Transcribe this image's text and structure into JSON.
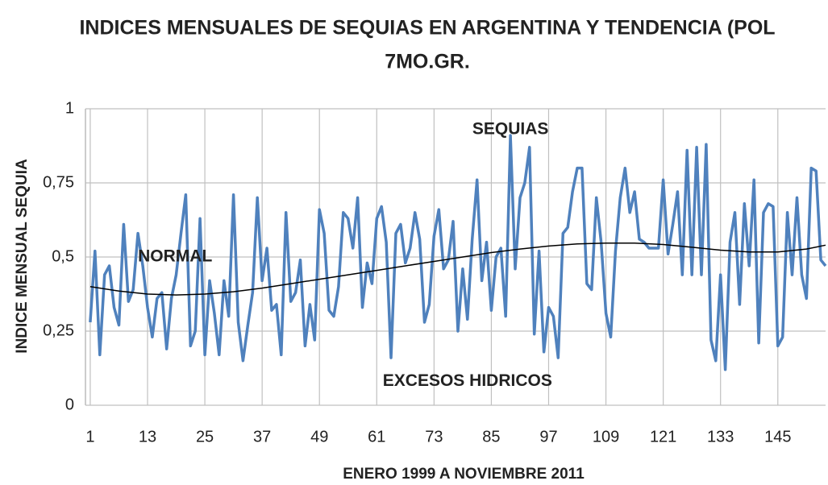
{
  "chart_data": {
    "type": "line",
    "title": [
      "INDICES MENSUALES DE SEQUIAS EN ARGENTINA Y TENDENCIA (POL",
      "7MO.GR."
    ],
    "x_label": "ENERO 1999 A NOVIEMBRE 2011",
    "y_label": "INDICE MENSUAL SEQUIA",
    "annotations": [
      {
        "text": "SEQUIAS",
        "x": 89,
        "y": 0.93
      },
      {
        "text": "NORMAL",
        "x": 11,
        "y": 0.5
      },
      {
        "text": "EXCESOS HIDRICOS",
        "x": 80,
        "y": 0.08
      }
    ],
    "xlim": [
      0,
      155
    ],
    "xticks": [
      1,
      13,
      25,
      37,
      49,
      61,
      73,
      85,
      97,
      109,
      121,
      133,
      145
    ],
    "ylim": [
      0,
      1
    ],
    "yticks": [
      0,
      {
        "value": 0.25,
        "label": "0,25"
      },
      {
        "value": 0.5,
        "label": "0,5"
      },
      {
        "value": 0.75,
        "label": "0,75"
      },
      1
    ],
    "grid": true,
    "series": [
      {
        "color": "#4f81bd",
        "width": 3.5,
        "x": [
          1,
          2,
          3,
          4,
          5,
          6,
          7,
          8,
          9,
          10,
          11,
          12,
          13,
          14,
          15,
          16,
          17,
          18,
          19,
          20,
          21,
          22,
          23,
          24,
          25,
          26,
          27,
          28,
          29,
          30,
          31,
          32,
          33,
          34,
          35,
          36,
          37,
          38,
          39,
          40,
          41,
          42,
          43,
          44,
          45,
          46,
          47,
          48,
          49,
          50,
          51,
          52,
          53,
          54,
          55,
          56,
          57,
          58,
          59,
          60,
          61,
          62,
          63,
          64,
          65,
          66,
          67,
          68,
          69,
          70,
          71,
          72,
          73,
          74,
          75,
          76,
          77,
          78,
          79,
          80,
          81,
          82,
          83,
          84,
          85,
          86,
          87,
          88,
          89,
          90,
          91,
          92,
          93,
          94,
          95,
          96,
          97,
          98,
          99,
          100,
          101,
          102,
          103,
          104,
          105,
          106,
          107,
          108,
          109,
          110,
          111,
          112,
          113,
          114,
          115,
          116,
          117,
          118,
          119,
          120,
          121,
          122,
          123,
          124,
          125,
          126,
          127,
          128,
          129,
          130,
          131,
          132,
          133,
          134,
          135,
          136,
          137,
          138,
          139,
          140,
          141,
          142,
          143,
          144,
          145,
          146,
          147,
          148,
          149,
          150,
          151,
          152,
          153,
          154,
          155
        ],
        "values": [
          0.28,
          0.52,
          0.17,
          0.44,
          0.47,
          0.33,
          0.27,
          0.61,
          0.35,
          0.39,
          0.58,
          0.47,
          0.33,
          0.23,
          0.36,
          0.38,
          0.19,
          0.36,
          0.44,
          0.58,
          0.71,
          0.2,
          0.25,
          0.63,
          0.17,
          0.42,
          0.31,
          0.17,
          0.42,
          0.3,
          0.71,
          0.28,
          0.15,
          0.27,
          0.38,
          0.7,
          0.42,
          0.53,
          0.32,
          0.34,
          0.17,
          0.65,
          0.35,
          0.38,
          0.49,
          0.2,
          0.34,
          0.22,
          0.66,
          0.58,
          0.32,
          0.3,
          0.4,
          0.65,
          0.63,
          0.53,
          0.7,
          0.33,
          0.48,
          0.41,
          0.63,
          0.67,
          0.55,
          0.16,
          0.58,
          0.61,
          0.48,
          0.53,
          0.65,
          0.56,
          0.28,
          0.34,
          0.57,
          0.66,
          0.46,
          0.49,
          0.62,
          0.25,
          0.46,
          0.29,
          0.56,
          0.76,
          0.42,
          0.55,
          0.32,
          0.5,
          0.53,
          0.3,
          0.91,
          0.46,
          0.7,
          0.75,
          0.87,
          0.24,
          0.52,
          0.18,
          0.33,
          0.3,
          0.16,
          0.58,
          0.6,
          0.72,
          0.8,
          0.8,
          0.41,
          0.39,
          0.7,
          0.55,
          0.31,
          0.23,
          0.52,
          0.7,
          0.8,
          0.65,
          0.72,
          0.56,
          0.55,
          0.53,
          0.53,
          0.53,
          0.76,
          0.51,
          0.61,
          0.72,
          0.44,
          0.86,
          0.44,
          0.87,
          0.44,
          0.88,
          0.22,
          0.15,
          0.44,
          0.12,
          0.55,
          0.65,
          0.34,
          0.68,
          0.47,
          0.76,
          0.21,
          0.65,
          0.68,
          0.67,
          0.2,
          0.23,
          0.65,
          0.44,
          0.7,
          0.44,
          0.36,
          0.8,
          0.79,
          0.49,
          0.47
        ]
      },
      {
        "color": "#000000",
        "width": 1.5,
        "x": [
          1,
          7,
          13,
          19,
          25,
          31,
          37,
          43,
          49,
          55,
          61,
          67,
          73,
          79,
          85,
          91,
          97,
          103,
          109,
          115,
          121,
          127,
          133,
          139,
          145,
          151,
          155
        ],
        "values": [
          0.4,
          0.385,
          0.375,
          0.372,
          0.375,
          0.383,
          0.395,
          0.41,
          0.425,
          0.44,
          0.455,
          0.47,
          0.485,
          0.5,
          0.515,
          0.527,
          0.537,
          0.544,
          0.547,
          0.547,
          0.542,
          0.533,
          0.523,
          0.517,
          0.517,
          0.527,
          0.54
        ]
      }
    ]
  }
}
